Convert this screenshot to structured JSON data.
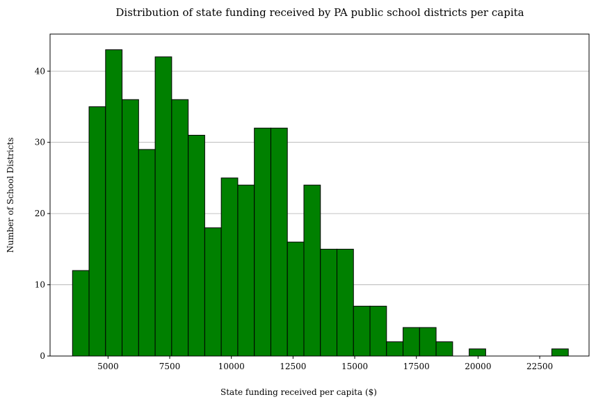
{
  "chart_data": {
    "type": "bar",
    "title": "Distribution of state funding received by PA public school districts per capita",
    "xlabel": "State funding received per capita ($)",
    "ylabel": "Number of School Districts",
    "xlim": [
      2650,
      24500
    ],
    "ylim": [
      0,
      45.2
    ],
    "xticks": [
      5000,
      7500,
      10000,
      12500,
      15000,
      17500,
      20000,
      22500
    ],
    "yticks": [
      0,
      10,
      20,
      30,
      40
    ],
    "grid": "y-major",
    "bar_color": "#008000",
    "edge_color": "#000000",
    "bin_start": 3560,
    "bin_width": 670,
    "values": [
      12,
      35,
      43,
      36,
      29,
      42,
      36,
      31,
      18,
      25,
      24,
      32,
      32,
      16,
      24,
      15,
      15,
      7,
      7,
      2,
      4,
      4,
      2,
      0,
      1,
      0,
      0,
      0,
      0,
      1
    ]
  }
}
